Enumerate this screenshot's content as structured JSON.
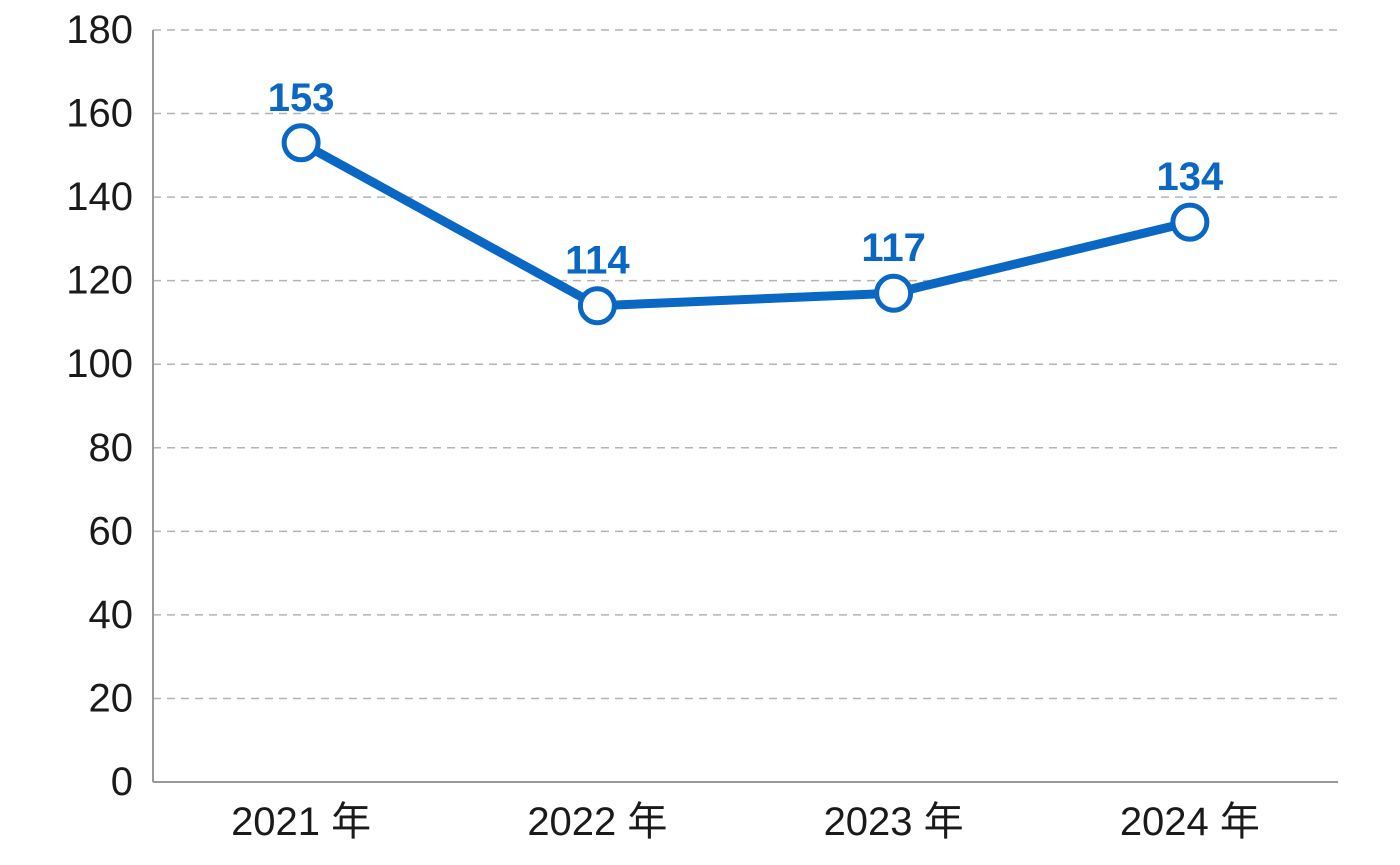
{
  "chart_data": {
    "type": "line",
    "categories": [
      "2021 年",
      "2022 年",
      "2023 年",
      "2024 年"
    ],
    "values": [
      153,
      114,
      117,
      134
    ],
    "data_labels": [
      "153",
      "114",
      "117",
      "134"
    ],
    "y_ticks": [
      "0",
      "20",
      "40",
      "60",
      "80",
      "100",
      "120",
      "140",
      "160",
      "180"
    ],
    "ylim": [
      0,
      180
    ],
    "grid": true,
    "colors": {
      "line": "#0a67c3",
      "grid": "#b3b3b3",
      "axis": "#999999"
    }
  }
}
